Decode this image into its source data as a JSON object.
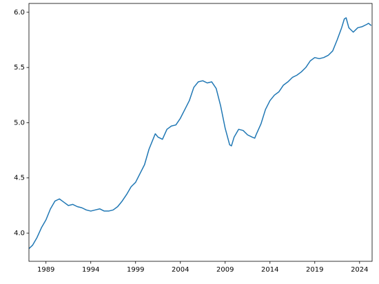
{
  "chart_data": {
    "type": "line",
    "x": [
      1987.1,
      1987.5,
      1988,
      1988.5,
      1989,
      1989.5,
      1990,
      1990.5,
      1991,
      1991.5,
      1992,
      1992.5,
      1993,
      1993.5,
      1994,
      1994.5,
      1995,
      1995.5,
      1996,
      1996.5,
      1997,
      1997.5,
      1998,
      1998.5,
      1999,
      1999.5,
      2000,
      2000.5,
      2001,
      2001.2,
      2001.5,
      2002,
      2002.5,
      2003,
      2003.5,
      2004,
      2004.5,
      2005,
      2005.5,
      2006,
      2006.5,
      2007,
      2007.5,
      2008,
      2008.5,
      2009,
      2009.5,
      2009.7,
      2010,
      2010.5,
      2011,
      2011.5,
      2012,
      2012.3,
      2012.5,
      2013,
      2013.5,
      2014,
      2014.5,
      2015,
      2015.5,
      2016,
      2016.5,
      2017,
      2017.5,
      2018,
      2018.5,
      2019,
      2019.5,
      2020,
      2020.5,
      2021,
      2021.5,
      2022,
      2022.3,
      2022.5,
      2022.8,
      2023.3,
      2023.8,
      2024.3,
      2024.8,
      2025.0,
      2025.3
    ],
    "series": [
      {
        "color": "#1f77b4",
        "values": [
          3.86,
          3.89,
          3.96,
          4.05,
          4.12,
          4.22,
          4.29,
          4.31,
          4.28,
          4.25,
          4.26,
          4.24,
          4.23,
          4.21,
          4.2,
          4.21,
          4.22,
          4.2,
          4.2,
          4.21,
          4.24,
          4.29,
          4.35,
          4.42,
          4.46,
          4.54,
          4.62,
          4.76,
          4.86,
          4.9,
          4.87,
          4.85,
          4.94,
          4.97,
          4.98,
          5.04,
          5.12,
          5.2,
          5.32,
          5.37,
          5.38,
          5.36,
          5.37,
          5.31,
          5.15,
          4.95,
          4.8,
          4.79,
          4.87,
          4.94,
          4.93,
          4.89,
          4.87,
          4.86,
          4.9,
          4.99,
          5.12,
          5.2,
          5.25,
          5.28,
          5.34,
          5.37,
          5.41,
          5.43,
          5.46,
          5.5,
          5.56,
          5.59,
          5.58,
          5.59,
          5.61,
          5.65,
          5.75,
          5.86,
          5.94,
          5.95,
          5.86,
          5.82,
          5.86,
          5.87,
          5.89,
          5.9,
          5.88
        ]
      }
    ],
    "xlim": [
      1987.1,
      2025.4
    ],
    "xticks": [
      1989,
      1994,
      1999,
      2004,
      2009,
      2014,
      2019,
      2024
    ],
    "ylim": [
      3.745,
      6.08
    ],
    "yticks": [
      {
        "value": 4,
        "label": "4.0"
      },
      4.5,
      {
        "value": 5,
        "label": "5.0"
      },
      5.5,
      {
        "value": 6,
        "label": "6.0"
      }
    ]
  }
}
